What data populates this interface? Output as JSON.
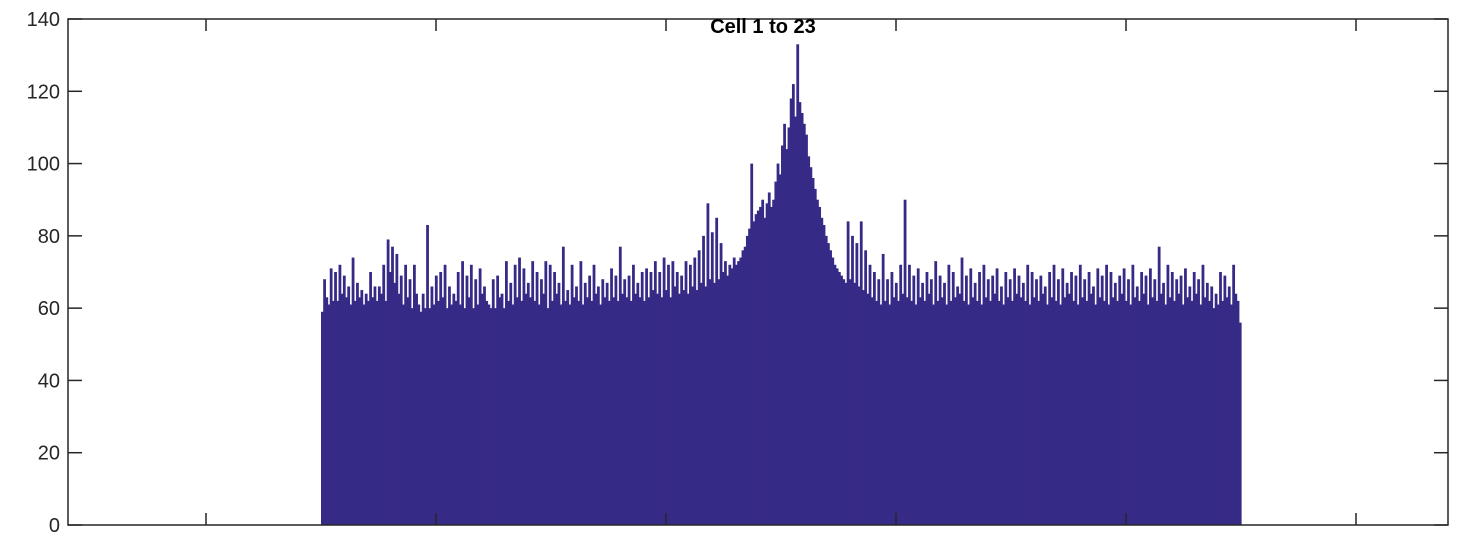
{
  "chart_data": {
    "type": "bar",
    "title": "Cell 1 to 23",
    "xlabel": "",
    "ylabel": "",
    "ylim": [
      0,
      140
    ],
    "yticks": [
      0,
      20,
      40,
      60,
      80,
      100,
      120,
      140
    ],
    "ytick_labels": [
      "0",
      "20",
      "40",
      "60",
      "80",
      "100",
      "120",
      "140"
    ],
    "grid": false,
    "bar_color": "#362a87",
    "x_range": [
      -10,
      590
    ],
    "bar_width": 0.8,
    "bar_start": 100,
    "bar_end": 500,
    "series": [
      {
        "values": [
          59,
          68,
          63,
          61,
          71,
          62,
          70,
          62,
          72,
          64,
          69,
          63,
          66,
          61,
          74,
          62,
          67,
          63,
          65,
          61,
          64,
          62,
          70,
          63,
          66,
          62,
          66,
          64,
          72,
          62,
          79,
          70,
          77,
          67,
          75,
          64,
          69,
          61,
          72,
          63,
          68,
          60,
          72,
          64,
          61,
          59,
          64,
          60,
          83,
          60,
          66,
          61,
          69,
          62,
          70,
          63,
          72,
          60,
          66,
          61,
          64,
          62,
          70,
          61,
          73,
          60,
          69,
          63,
          72,
          60,
          68,
          61,
          71,
          64,
          66,
          62,
          61,
          60,
          68,
          60,
          69,
          63,
          64,
          60,
          73,
          62,
          67,
          61,
          72,
          63,
          74,
          62,
          71,
          64,
          67,
          63,
          73,
          62,
          70,
          61,
          68,
          64,
          73,
          60,
          72,
          62,
          70,
          64,
          67,
          61,
          77,
          62,
          65,
          61,
          72,
          63,
          66,
          62,
          73,
          61,
          67,
          63,
          69,
          62,
          72,
          64,
          66,
          61,
          68,
          63,
          67,
          62,
          71,
          63,
          69,
          62,
          77,
          64,
          68,
          63,
          69,
          62,
          72,
          64,
          67,
          63,
          70,
          62,
          71,
          63,
          70,
          65,
          73,
          64,
          70,
          63,
          74,
          65,
          72,
          63,
          73,
          66,
          70,
          64,
          69,
          65,
          73,
          64,
          72,
          66,
          74,
          65,
          76,
          67,
          80,
          66,
          89,
          68,
          81,
          67,
          85,
          68,
          78,
          70,
          73,
          69,
          72,
          71,
          74,
          72,
          73,
          74,
          76,
          77,
          80,
          82,
          100,
          84,
          86,
          87,
          88,
          90,
          85,
          89,
          92,
          88,
          90,
          95,
          100,
          97,
          105,
          111,
          104,
          110,
          118,
          122,
          113,
          133,
          117,
          114,
          111,
          108,
          102,
          99,
          96,
          93,
          90,
          88,
          85,
          83,
          80,
          78,
          76,
          74,
          72,
          71,
          70,
          69,
          68,
          67,
          84,
          68,
          80,
          67,
          78,
          66,
          84,
          65,
          76,
          64,
          72,
          63,
          70,
          62,
          68,
          61,
          75,
          62,
          68,
          61,
          70,
          63,
          67,
          62,
          72,
          64,
          90,
          63,
          72,
          62,
          69,
          61,
          71,
          63,
          67,
          62,
          70,
          64,
          68,
          61,
          73,
          62,
          69,
          63,
          67,
          61,
          72,
          62,
          70,
          63,
          66,
          64,
          74,
          62,
          69,
          61,
          71,
          63,
          67,
          62,
          70,
          61,
          72,
          63,
          68,
          62,
          69,
          64,
          71,
          62,
          66,
          61,
          70,
          63,
          68,
          62,
          71,
          64,
          69,
          63,
          67,
          62,
          72,
          61,
          70,
          63,
          68,
          62,
          69,
          64,
          66,
          61,
          70,
          63,
          72,
          62,
          68,
          61,
          71,
          63,
          67,
          64,
          70,
          62,
          69,
          61,
          72,
          63,
          68,
          62,
          70,
          64,
          66,
          61,
          71,
          63,
          69,
          62,
          72,
          61,
          70,
          63,
          67,
          62,
          69,
          64,
          71,
          62,
          68,
          61,
          72,
          63,
          66,
          62,
          70,
          64,
          69,
          61,
          71,
          63,
          68,
          62,
          77,
          64,
          67,
          61,
          72,
          63,
          70,
          62,
          68,
          64,
          69,
          61,
          71,
          63,
          66,
          62,
          70,
          64,
          68,
          61,
          72,
          63,
          67,
          62,
          66,
          60,
          64,
          61,
          70,
          62,
          69,
          63,
          66,
          61,
          72,
          64,
          62,
          56
        ]
      }
    ]
  }
}
